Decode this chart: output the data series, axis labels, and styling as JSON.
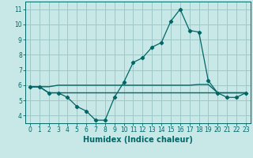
{
  "title": "",
  "xlabel": "Humidex (Indice chaleur)",
  "ylabel": "",
  "bg_color": "#c8e8e8",
  "grid_color": "#a0c8c8",
  "line_color": "#006666",
  "xlim": [
    -0.5,
    23.5
  ],
  "ylim": [
    3.5,
    11.5
  ],
  "xticks": [
    0,
    1,
    2,
    3,
    4,
    5,
    6,
    7,
    8,
    9,
    10,
    11,
    12,
    13,
    14,
    15,
    16,
    17,
    18,
    19,
    20,
    21,
    22,
    23
  ],
  "yticks": [
    4,
    5,
    6,
    7,
    8,
    9,
    10,
    11
  ],
  "line1_x": [
    0,
    1,
    2,
    3,
    4,
    5,
    6,
    7,
    8,
    9,
    10,
    11,
    12,
    13,
    14,
    15,
    16,
    17,
    18,
    19,
    20,
    21,
    22,
    23
  ],
  "line1_y": [
    5.9,
    5.9,
    5.5,
    5.5,
    5.2,
    4.6,
    4.3,
    3.7,
    3.7,
    5.2,
    6.2,
    7.5,
    7.8,
    8.5,
    8.8,
    10.2,
    11.0,
    9.6,
    9.5,
    6.3,
    5.5,
    5.2,
    5.2,
    5.5
  ],
  "line2_x": [
    0,
    1,
    2,
    3,
    4,
    5,
    6,
    7,
    8,
    9,
    10,
    11,
    12,
    13,
    14,
    15,
    16,
    17,
    18,
    19,
    20,
    21,
    22,
    23
  ],
  "line2_y": [
    5.9,
    5.9,
    5.5,
    5.5,
    5.5,
    5.5,
    5.5,
    5.5,
    5.5,
    5.5,
    5.5,
    5.5,
    5.5,
    5.5,
    5.5,
    5.5,
    5.5,
    5.5,
    5.5,
    5.5,
    5.5,
    5.5,
    5.5,
    5.5
  ],
  "line3_x": [
    0,
    1,
    2,
    3,
    4,
    5,
    6,
    7,
    8,
    9,
    10,
    11,
    12,
    13,
    14,
    15,
    16,
    17,
    18,
    19,
    20,
    21,
    22,
    23
  ],
  "line3_y": [
    5.9,
    5.9,
    5.9,
    6.0,
    6.0,
    6.0,
    6.0,
    6.0,
    6.0,
    6.0,
    6.0,
    6.0,
    6.0,
    6.0,
    6.0,
    6.0,
    6.0,
    6.0,
    6.05,
    6.05,
    5.5,
    5.5,
    5.5,
    5.5
  ],
  "xlabel_fontsize": 7,
  "tick_fontsize": 5.5
}
